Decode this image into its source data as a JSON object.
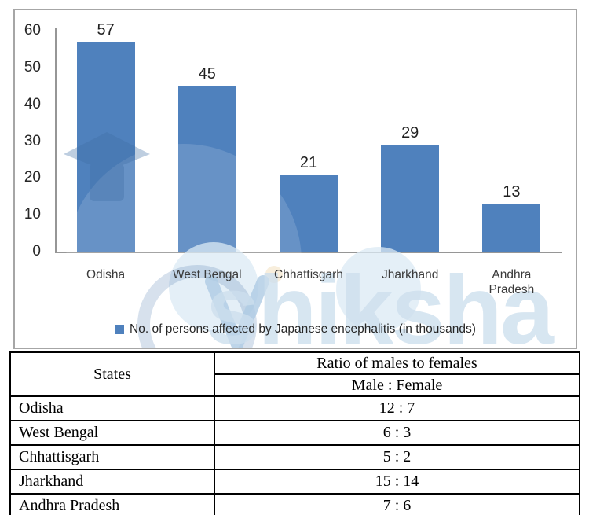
{
  "chart_data": {
    "type": "bar",
    "categories": [
      "Odisha",
      "West Bengal",
      "Chhattisgarh",
      "Jharkhand",
      "Andhra Pradesh"
    ],
    "values": [
      57,
      45,
      21,
      29,
      13
    ],
    "legend": "No. of persons affected by Japanese encephalitis (in thousands)",
    "title": "",
    "xlabel": "",
    "ylabel": "",
    "ylim": [
      0,
      60
    ],
    "yticks": [
      0,
      10,
      20,
      30,
      40,
      50,
      60
    ],
    "grid": "off",
    "legend_position": "bottom-center",
    "bar_color": "#4f81bd",
    "axis_color": "#969696",
    "border_color": "#a6a6a6"
  },
  "watermark": {
    "text": "shiksha",
    "color": "#cddfee"
  },
  "table": {
    "states_header": "States",
    "ratio_header": "Ratio of males to females",
    "ratio_subheader": "Male : Female",
    "rows": [
      {
        "state": "Odisha",
        "ratio": "12 : 7"
      },
      {
        "state": "West Bengal",
        "ratio": "6 : 3"
      },
      {
        "state": "Chhattisgarh",
        "ratio": "5 : 2"
      },
      {
        "state": "Jharkhand",
        "ratio": "15 : 14"
      },
      {
        "state": "Andhra Pradesh",
        "ratio": "7 : 6"
      }
    ]
  }
}
